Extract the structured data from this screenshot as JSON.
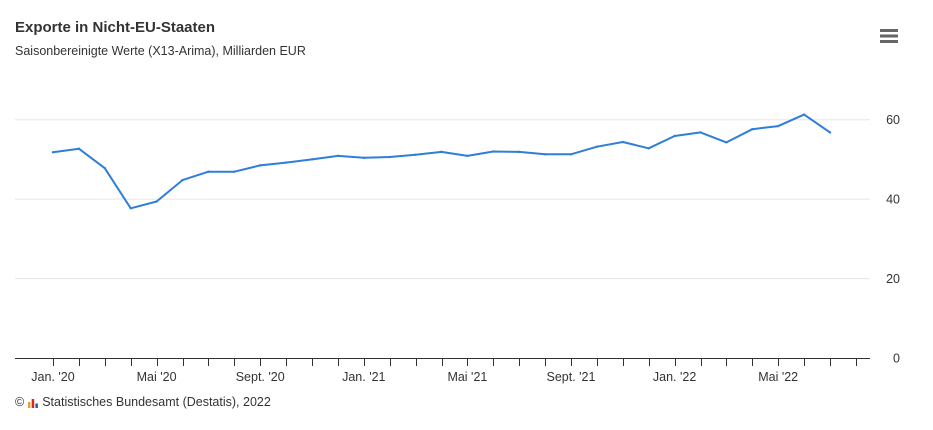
{
  "chart_data": {
    "type": "line",
    "title": "Exporte in Nicht-EU-Staaten",
    "subtitle": "Saisonbereinigte Werte (X13-Arima), Milliarden EUR",
    "x": [
      "2020-01",
      "2020-02",
      "2020-03",
      "2020-04",
      "2020-05",
      "2020-06",
      "2020-07",
      "2020-08",
      "2020-09",
      "2020-10",
      "2020-11",
      "2020-12",
      "2021-01",
      "2021-02",
      "2021-03",
      "2021-04",
      "2021-05",
      "2021-06",
      "2021-07",
      "2021-08",
      "2021-09",
      "2021-10",
      "2021-11",
      "2021-12",
      "2022-01",
      "2022-02",
      "2022-03",
      "2022-04",
      "2022-05",
      "2022-06",
      "2022-07"
    ],
    "series": [
      {
        "values": [
          51.8,
          52.7,
          47.8,
          37.7,
          39.4,
          44.8,
          46.9,
          46.9,
          48.5,
          49.2,
          50.0,
          50.9,
          50.4,
          50.6,
          51.2,
          51.9,
          50.9,
          52.0,
          51.9,
          51.3,
          51.3,
          53.2,
          54.4,
          52.8,
          55.9,
          56.8,
          54.3,
          57.6,
          58.4,
          61.3,
          56.8
        ],
        "color": "#2f7ed8"
      }
    ],
    "x_tick_labels": [
      "Jan. '20",
      "Mai '20",
      "Sept. '20",
      "Jan. '21",
      "Mai '21",
      "Sept. '21",
      "Jan. '22",
      "Mai '22"
    ],
    "y_ticks": [
      0,
      20,
      40,
      60
    ],
    "ylim": [
      0,
      70
    ],
    "y_axis_side": "right",
    "grid": true,
    "legend": "none"
  },
  "menu": {
    "icon": "hamburger-menu-icon"
  },
  "credit": {
    "symbol": "©",
    "logo_icon": "destatis-logo-icon",
    "text": "Statistisches Bundesamt (Destatis), 2022"
  }
}
